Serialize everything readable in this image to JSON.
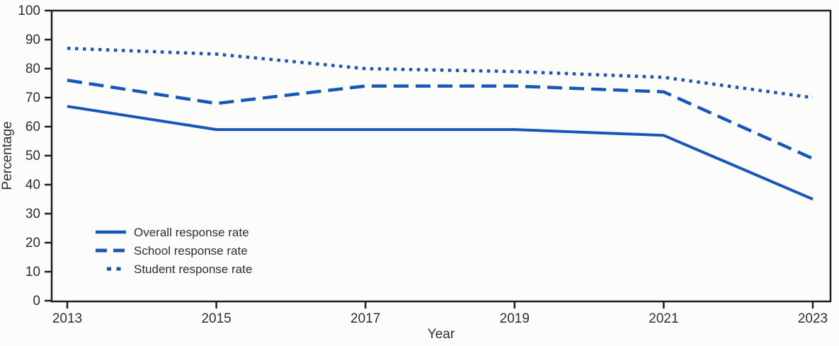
{
  "figure": {
    "background_color": "#fcfcfa",
    "axis_color": "#1c1c1c",
    "text_color": "#2e2e2e",
    "line_color": "#1757b8"
  },
  "chart_data": {
    "type": "line",
    "title": "",
    "xlabel": "Year",
    "ylabel": "Percentage",
    "categories": [
      "2013",
      "2015",
      "2017",
      "2019",
      "2021",
      "2023"
    ],
    "x_values": [
      2013,
      2015,
      2017,
      2019,
      2021,
      2023
    ],
    "ylim": [
      0,
      100
    ],
    "yticks": [
      0,
      10,
      20,
      30,
      40,
      50,
      60,
      70,
      80,
      90,
      100
    ],
    "grid": false,
    "frame": "full-box",
    "legend_position": "inside-lower-left",
    "series": [
      {
        "name": "Overall response rate",
        "style": "solid",
        "values": [
          67,
          59,
          59,
          59,
          57,
          35
        ]
      },
      {
        "name": "School response rate",
        "style": "dashed",
        "values": [
          76,
          68,
          74,
          74,
          72,
          49
        ]
      },
      {
        "name": "Student response rate",
        "style": "dotted",
        "values": [
          87,
          85,
          80,
          79,
          77,
          70
        ]
      }
    ]
  }
}
